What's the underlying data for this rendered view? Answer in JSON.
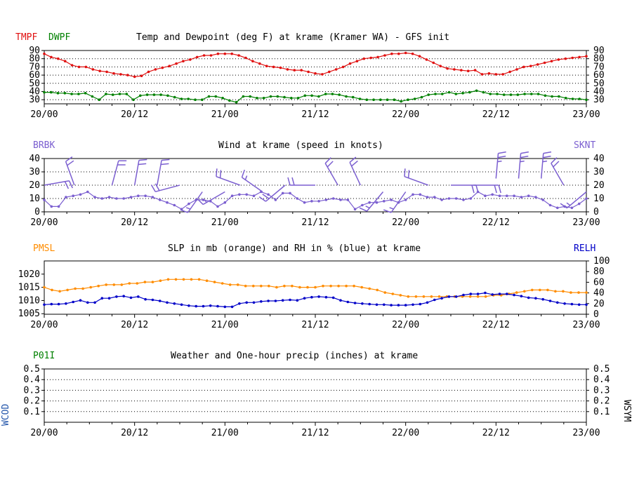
{
  "time_labels": [
    "20/00",
    "20/12",
    "21/00",
    "21/12",
    "22/00",
    "22/12",
    "23/00"
  ],
  "colors": {
    "red": "#e01010",
    "green": "#008000",
    "purple": "#7b5fd0",
    "orange": "#ff8c00",
    "blue": "#0000c8"
  },
  "chart_data": [
    {
      "type": "line",
      "title": "Temp and Dewpoint (deg F) at krame (Kramer WA) - GFS init",
      "xlim": [
        0,
        72
      ],
      "ylim": [
        25,
        90
      ],
      "yticks": [
        30,
        40,
        50,
        60,
        70,
        80,
        90
      ],
      "right_yticks": [
        30,
        40,
        50,
        60,
        70,
        80,
        90
      ],
      "grid": true,
      "series": [
        {
          "name": "TMPF",
          "color": "#e01010",
          "values": [
            86,
            82,
            80,
            77,
            72,
            70,
            70,
            67,
            65,
            64,
            62,
            61,
            60,
            58,
            59,
            64,
            67,
            69,
            71,
            74,
            77,
            79,
            82,
            84,
            84,
            86,
            86,
            86,
            84,
            81,
            77,
            74,
            71,
            70,
            69,
            67,
            66,
            66,
            64,
            62,
            61,
            64,
            67,
            70,
            74,
            77,
            80,
            81,
            82,
            84,
            86,
            86,
            87,
            86,
            83,
            79,
            75,
            71,
            68,
            67,
            66,
            65,
            66,
            61,
            62,
            61,
            61,
            64,
            67,
            70,
            71,
            73,
            75,
            77,
            79,
            80,
            81,
            82,
            83
          ]
        },
        {
          "name": "DWPF",
          "color": "#008000",
          "values": [
            39,
            39,
            38,
            38,
            37,
            37,
            38,
            34,
            30,
            37,
            36,
            37,
            37,
            30,
            35,
            36,
            36,
            36,
            35,
            33,
            31,
            31,
            30,
            30,
            34,
            34,
            32,
            29,
            27,
            34,
            34,
            32,
            32,
            34,
            34,
            33,
            32,
            32,
            35,
            35,
            34,
            37,
            37,
            36,
            34,
            33,
            31,
            30,
            30,
            30,
            30,
            30,
            28,
            30,
            31,
            33,
            36,
            37,
            37,
            39,
            37,
            38,
            39,
            41,
            39,
            37,
            37,
            36,
            36,
            36,
            37,
            37,
            37,
            35,
            34,
            34,
            32,
            31,
            31,
            30
          ]
        }
      ]
    },
    {
      "type": "line",
      "title": "Wind at  krame (speed in knots)",
      "xlim": [
        0,
        72
      ],
      "ylim": [
        0,
        40
      ],
      "yticks": [
        0,
        10,
        20,
        30,
        40
      ],
      "right_yticks": [
        0,
        10,
        20,
        30,
        40
      ],
      "grid": true,
      "series": [
        {
          "name": "SKNT",
          "color": "#7b5fd0",
          "values": [
            9,
            4,
            4,
            11,
            12,
            13,
            15,
            11,
            10,
            11,
            10,
            10,
            11,
            12,
            12,
            11,
            9,
            7,
            5,
            2,
            6,
            9,
            9,
            8,
            4,
            7,
            12,
            13,
            13,
            12,
            15,
            13,
            9,
            14,
            14,
            10,
            7,
            8,
            8,
            9,
            10,
            9,
            9,
            2,
            5,
            7,
            7,
            8,
            9,
            7,
            9,
            13,
            13,
            11,
            11,
            9,
            10,
            10,
            9,
            10,
            15,
            12,
            13,
            12,
            12,
            12,
            11,
            12,
            11,
            9,
            5,
            3,
            4,
            3,
            6,
            10
          ]
        },
        {
          "name": "BRBK",
          "color": "#7b5fd0",
          "barbs": [
            {
              "time": 0,
              "speed": 20,
              "dir": 80
            },
            {
              "time": 4,
              "speed": 20,
              "dir": 340
            },
            {
              "time": 9,
              "speed": 20,
              "dir": 15
            },
            {
              "time": 12,
              "speed": 20,
              "dir": 10
            },
            {
              "time": 15,
              "speed": 20,
              "dir": 10
            },
            {
              "time": 18,
              "speed": 20,
              "dir": 255
            },
            {
              "time": 21,
              "speed": 15,
              "dir": 215
            },
            {
              "time": 24,
              "speed": 15,
              "dir": 240
            },
            {
              "time": 26,
              "speed": 20,
              "dir": 290
            },
            {
              "time": 29,
              "speed": 15,
              "dir": 305
            },
            {
              "time": 32,
              "speed": 20,
              "dir": 230
            },
            {
              "time": 36,
              "speed": 20,
              "dir": 270
            },
            {
              "time": 39,
              "speed": 20,
              "dir": 330
            },
            {
              "time": 42,
              "speed": 20,
              "dir": 335
            },
            {
              "time": 45,
              "speed": 15,
              "dir": 220
            },
            {
              "time": 48,
              "speed": 15,
              "dir": 215
            },
            {
              "time": 51,
              "speed": 20,
              "dir": 290
            },
            {
              "time": 54,
              "speed": 20,
              "dir": 90
            },
            {
              "time": 57,
              "speed": 20,
              "dir": 90
            },
            {
              "time": 60,
              "speed": 25,
              "dir": 5
            },
            {
              "time": 63,
              "speed": 25,
              "dir": 5
            },
            {
              "time": 66,
              "speed": 25,
              "dir": 5
            },
            {
              "time": 69,
              "speed": 20,
              "dir": 330
            },
            {
              "time": 72,
              "speed": 15,
              "dir": 230
            }
          ]
        }
      ]
    },
    {
      "type": "line",
      "title": "SLP in mb (orange) and RH in % (blue) at  krame",
      "xlim": [
        0,
        72
      ],
      "ylim": [
        1004.8,
        1025
      ],
      "yticks": [
        1005,
        1010,
        1015,
        1020
      ],
      "right_ylim": [
        0,
        100
      ],
      "right_yticks": [
        0,
        20,
        40,
        60,
        80,
        100
      ],
      "grid": false,
      "series": [
        {
          "name": "PMSL",
          "color": "#ff8c00",
          "values": [
            1015,
            1014,
            1013.5,
            1014,
            1014.5,
            1014.5,
            1015,
            1015.5,
            1016,
            1016,
            1016,
            1016.5,
            1016.5,
            1017,
            1017,
            1017.5,
            1018,
            1018,
            1018,
            1018,
            1018,
            1017.5,
            1017,
            1016.5,
            1016,
            1016,
            1015.5,
            1015.5,
            1015.5,
            1015.5,
            1015,
            1015.5,
            1015.5,
            1015,
            1015,
            1015,
            1015.5,
            1015.5,
            1015.5,
            1015.5,
            1015.5,
            1015,
            1014.5,
            1014,
            1013,
            1012.5,
            1012,
            1011.5,
            1011.5,
            1011.5,
            1011.5,
            1011.5,
            1011.5,
            1011.5,
            1011.5,
            1011.5,
            1011.5,
            1011.5,
            1012,
            1012,
            1012.5,
            1013,
            1013.5,
            1014,
            1014,
            1014,
            1013.5,
            1013.5,
            1013,
            1013,
            1013
          ]
        },
        {
          "name": "RELH",
          "color": "#0000c8",
          "values": [
            18,
            19,
            19,
            20,
            23,
            26,
            22,
            22,
            30,
            30,
            33,
            34,
            31,
            33,
            28,
            27,
            25,
            22,
            20,
            18,
            16,
            15,
            15,
            16,
            15,
            14,
            14,
            20,
            22,
            22,
            24,
            25,
            25,
            26,
            27,
            26,
            30,
            32,
            33,
            32,
            31,
            26,
            23,
            21,
            20,
            19,
            18,
            18,
            17,
            17,
            17,
            18,
            19,
            22,
            27,
            30,
            33,
            33,
            36,
            38,
            38,
            40,
            37,
            38,
            38,
            36,
            34,
            31,
            30,
            28,
            25,
            22,
            20,
            19,
            18,
            18
          ]
        }
      ]
    },
    {
      "type": "line",
      "title": "Weather and One-hour precip (inches) at  krame",
      "xlim": [
        0,
        72
      ],
      "ylim": [
        0,
        0.5
      ],
      "yticks": [
        0.1,
        0.2,
        0.3,
        0.4,
        0.5
      ],
      "right_yticks": [
        0.1,
        0.2,
        0.3,
        0.4,
        0.5
      ],
      "grid": true,
      "series": []
    }
  ],
  "panel_labels": {
    "p1_left_a": "TMPF",
    "p1_left_b": "DWPF",
    "p2_left": "BRBK",
    "p2_right": "SKNT",
    "p3_left": "PMSL",
    "p3_right": "RELH",
    "p4_left": "P01I",
    "p4_vert_left": "WCOD",
    "p4_vert_right": "WSYM"
  }
}
